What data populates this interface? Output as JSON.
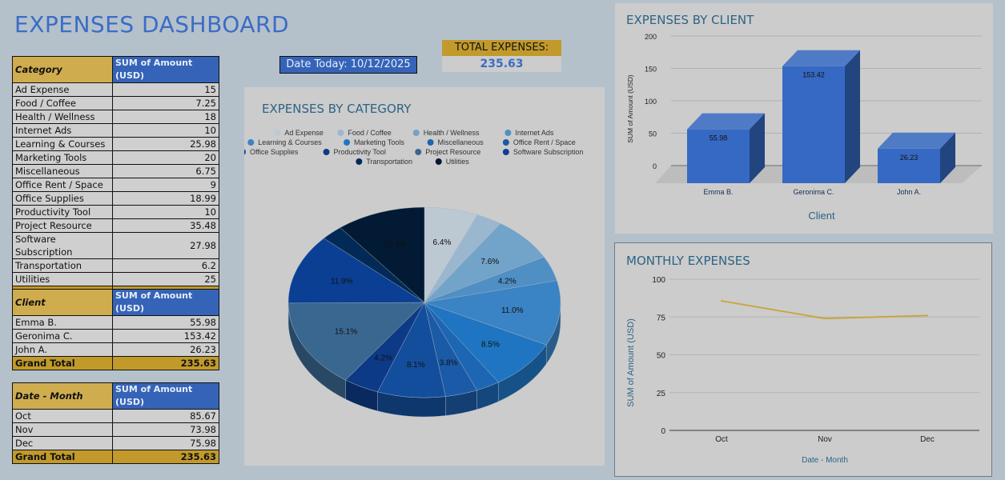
{
  "dashboard": {
    "title": "EXPENSES DASHBOARD",
    "date_today": "Date Today: 10/12/2025",
    "total_label": "TOTAL EXPENSES:",
    "total_value": "235.63"
  },
  "tables": {
    "category": {
      "headers": [
        "Category",
        "SUM of Amount (USD)"
      ],
      "rows": [
        [
          "Ad Expense",
          "15"
        ],
        [
          "Food / Coffee",
          "7.25"
        ],
        [
          "Health / Wellness",
          "18"
        ],
        [
          "Internet Ads",
          "10"
        ],
        [
          "Learning & Courses",
          "25.98"
        ],
        [
          "Marketing Tools",
          "20"
        ],
        [
          "Miscellaneous",
          "6.75"
        ],
        [
          "Office Rent / Space",
          "9"
        ],
        [
          "Office Supplies",
          "18.99"
        ],
        [
          "Productivity Tool",
          "10"
        ],
        [
          "Project Resource",
          "35.48"
        ],
        [
          "Software Subscription",
          "27.98"
        ],
        [
          "Transportation",
          "6.2"
        ],
        [
          "Utilities",
          "25"
        ]
      ],
      "total": [
        "Grand Total",
        "235.63"
      ]
    },
    "client": {
      "headers": [
        "Client",
        "SUM of Amount (USD)"
      ],
      "rows": [
        [
          "Emma B.",
          "55.98"
        ],
        [
          "Geronima C.",
          "153.42"
        ],
        [
          "John A.",
          "26.23"
        ]
      ],
      "total": [
        "Grand Total",
        "235.63"
      ]
    },
    "month": {
      "headers": [
        "Date - Month",
        "SUM of Amount (USD)"
      ],
      "rows": [
        [
          "Oct",
          "85.67"
        ],
        [
          "Nov",
          "73.98"
        ],
        [
          "Dec",
          "75.98"
        ]
      ],
      "total": [
        "Grand Total",
        "235.63"
      ]
    }
  },
  "chart_data": [
    {
      "type": "pie",
      "title": "EXPENSES BY CATEGORY",
      "legend_position": "top",
      "categories": [
        "Ad Expense",
        "Food / Coffee",
        "Health / Wellness",
        "Internet Ads",
        "Learning & Courses",
        "Marketing Tools",
        "Miscellaneous",
        "Office Rent / Space",
        "Office Supplies",
        "Productivity Tool",
        "Project Resource",
        "Software Subscription",
        "Transportation",
        "Utilities"
      ],
      "values": [
        15,
        7.25,
        18,
        10,
        25.98,
        20,
        6.75,
        9,
        18.99,
        10,
        35.48,
        27.98,
        6.2,
        25
      ],
      "data_labels": [
        "6.4%",
        "",
        "7.6%",
        "4.2%",
        "11.0%",
        "8.5%",
        "",
        "3.8%",
        "8.1%",
        "4.2%",
        "15.1%",
        "11.9%",
        "",
        "10.6%"
      ],
      "colors": [
        "#bcc8d2",
        "#9bb7cf",
        "#72a3c9",
        "#4f8fc4",
        "#3a83c4",
        "#1f75c1",
        "#1c66b4",
        "#1b5aa6",
        "#124e9c",
        "#0d3a87",
        "#3a6790",
        "#0a3f94",
        "#032a56",
        "#021a33"
      ]
    },
    {
      "type": "bar",
      "title": "EXPENSES BY CLIENT",
      "categories": [
        "Emma B.",
        "Geronima C.",
        "John A."
      ],
      "values": [
        55.98,
        153.42,
        26.23
      ],
      "data_labels": [
        "55.98",
        "153.42",
        "26.23"
      ],
      "xlabel": "Client",
      "ylabel": "SUM of Amount (USD)",
      "ylim": [
        0,
        200
      ],
      "yticks": [
        "0",
        "50",
        "100",
        "150",
        "200"
      ],
      "grid": true,
      "color": "#3569c3"
    },
    {
      "type": "line",
      "title": "MONTHLY EXPENSES",
      "categories": [
        "Oct",
        "Nov",
        "Dec"
      ],
      "values": [
        85.67,
        73.98,
        75.98
      ],
      "xlabel": "Date - Month",
      "ylabel": "SUM of Amount (USD)",
      "ylim": [
        0,
        100
      ],
      "yticks": [
        "0",
        "25",
        "50",
        "75",
        "100"
      ],
      "grid": true,
      "color": "#c9a43a"
    }
  ]
}
